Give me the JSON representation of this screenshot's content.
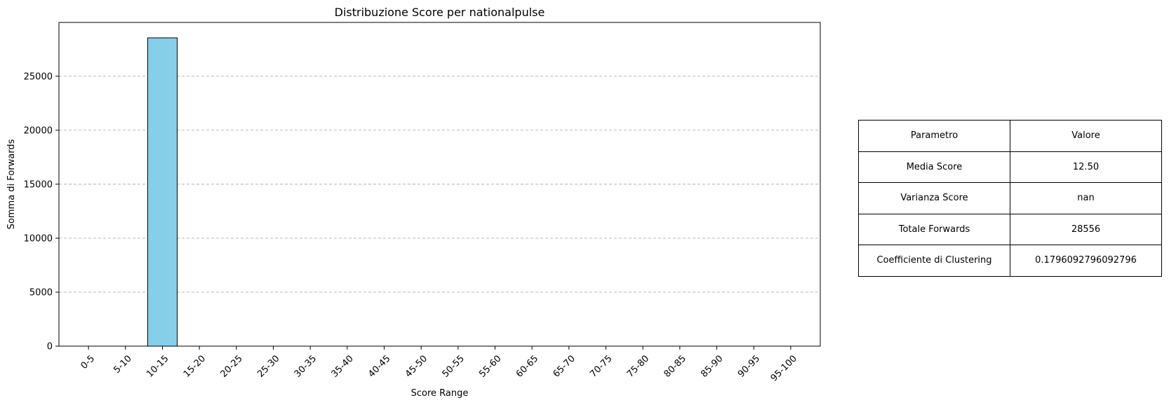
{
  "chart_data": {
    "type": "bar",
    "title": "Distribuzione Score per nationalpulse",
    "xlabel": "Score Range",
    "ylabel": "Somma di Forwards",
    "categories": [
      "0-5",
      "5-10",
      "10-15",
      "15-20",
      "20-25",
      "25-30",
      "30-35",
      "35-40",
      "40-45",
      "45-50",
      "50-55",
      "55-60",
      "60-65",
      "65-70",
      "70-75",
      "75-80",
      "80-85",
      "85-90",
      "90-95",
      "95-100"
    ],
    "values": [
      0,
      0,
      28556,
      0,
      0,
      0,
      0,
      0,
      0,
      0,
      0,
      0,
      0,
      0,
      0,
      0,
      0,
      0,
      0,
      0
    ],
    "ylim": [
      0,
      29983.8
    ],
    "yticks": [
      0,
      5000,
      10000,
      15000,
      20000,
      25000
    ],
    "grid": "y-dashed",
    "bar_color": "#87ceeb",
    "edge_color": "#000000"
  },
  "table": {
    "header": [
      "Parametro",
      "Valore"
    ],
    "rows": [
      [
        "Media Score",
        "12.50"
      ],
      [
        "Varianza Score",
        "nan"
      ],
      [
        "Totale Forwards",
        "28556"
      ],
      [
        "Coefficiente di Clustering",
        "0.1796092796092796"
      ]
    ]
  }
}
